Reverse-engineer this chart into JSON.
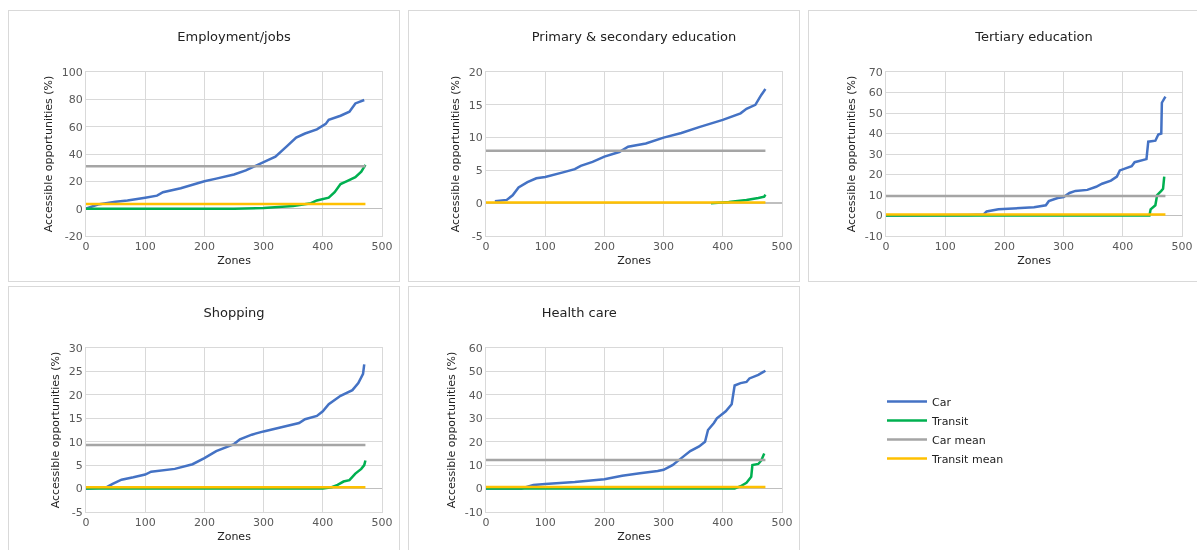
{
  "chart_data": [
    {
      "type": "line",
      "title": "Employment/jobs",
      "xlabel": "Zones",
      "ylabel": "Accessible opportunities (%)",
      "xlim": [
        0,
        500
      ],
      "xticks": [
        0,
        100,
        200,
        300,
        400,
        500
      ],
      "ylim": [
        -20,
        100
      ],
      "yticks": [
        -20,
        0,
        20,
        40,
        60,
        80,
        100
      ],
      "grid": true,
      "legend": false,
      "marker": "none",
      "line_style": "solid",
      "series": [
        {
          "color": "#4472c4",
          "x": [
            0,
            20,
            50,
            70,
            100,
            120,
            130,
            160,
            180,
            200,
            220,
            250,
            270,
            290,
            310,
            320,
            340,
            355,
            370,
            390,
            405,
            410,
            430,
            445,
            455,
            470
          ],
          "values": [
            0,
            3,
            5,
            6,
            8,
            9.5,
            12,
            15,
            17.5,
            20,
            22,
            25,
            28,
            32,
            36,
            38,
            46,
            52,
            55,
            58,
            62,
            65,
            68,
            71,
            77,
            79.5
          ]
        },
        {
          "color": "#00b050",
          "x": [
            0,
            250,
            300,
            350,
            380,
            390,
            410,
            420,
            430,
            440,
            455,
            465,
            472
          ],
          "values": [
            0,
            0,
            0.5,
            2,
            4,
            6,
            8,
            12,
            18,
            20,
            23,
            27,
            32
          ]
        },
        {
          "color": "#a5a5a5",
          "x": [
            0,
            472
          ],
          "values": [
            31,
            31
          ]
        },
        {
          "color": "#ffc000",
          "x": [
            0,
            472
          ],
          "values": [
            3.5,
            3.5
          ]
        }
      ]
    },
    {
      "type": "line",
      "title": "Primary & secondary education",
      "xlabel": "Zones",
      "ylabel": "Accessible opportunities (%)",
      "xlim": [
        0,
        500
      ],
      "xticks": [
        0,
        100,
        200,
        300,
        400,
        500
      ],
      "ylim": [
        -5,
        20
      ],
      "yticks": [
        -5,
        0,
        5,
        10,
        15,
        20
      ],
      "grid": true,
      "legend": false,
      "marker": "none",
      "line_style": "solid",
      "series": [
        {
          "color": "#4472c4",
          "x": [
            15,
            35,
            45,
            55,
            70,
            85,
            100,
            130,
            150,
            160,
            180,
            200,
            225,
            240,
            270,
            300,
            330,
            360,
            400,
            430,
            440,
            455,
            465,
            472
          ],
          "values": [
            0.3,
            0.5,
            1.2,
            2.4,
            3.2,
            3.8,
            4,
            4.7,
            5.2,
            5.7,
            6.3,
            7.1,
            7.8,
            8.6,
            9.1,
            10,
            10.7,
            11.6,
            12.7,
            13.7,
            14.4,
            15,
            16.5,
            17.4
          ]
        },
        {
          "color": "#00b050",
          "x": [
            380,
            410,
            440,
            460,
            470,
            472
          ],
          "values": [
            0,
            0.2,
            0.5,
            0.8,
            1,
            1.3
          ]
        },
        {
          "color": "#a5a5a5",
          "x": [
            0,
            472
          ],
          "values": [
            8,
            8
          ]
        },
        {
          "color": "#ffc000",
          "x": [
            0,
            472
          ],
          "values": [
            0.1,
            0.1
          ]
        }
      ]
    },
    {
      "type": "line",
      "title": "Tertiary education",
      "xlabel": "Zones",
      "ylabel": "Accessible opportunities (%)",
      "xlim": [
        0,
        500
      ],
      "xticks": [
        0,
        100,
        200,
        300,
        400,
        500
      ],
      "ylim": [
        -10,
        70
      ],
      "yticks": [
        -10,
        0,
        10,
        20,
        30,
        40,
        50,
        60,
        70
      ],
      "grid": true,
      "legend": false,
      "marker": "none",
      "line_style": "solid",
      "series": [
        {
          "color": "#4472c4",
          "x": [
            0,
            140,
            165,
            170,
            190,
            250,
            270,
            275,
            290,
            300,
            310,
            320,
            340,
            355,
            365,
            380,
            390,
            395,
            415,
            420,
            440,
            443,
            455,
            460,
            465,
            466,
            472
          ],
          "values": [
            0,
            0.3,
            0.5,
            2,
            3,
            4,
            5,
            7,
            8.5,
            9,
            11,
            12,
            12.5,
            14,
            15.5,
            17,
            19,
            22,
            24,
            26,
            27.5,
            36,
            36.5,
            39.5,
            40,
            55,
            58
          ]
        },
        {
          "color": "#00b050",
          "x": [
            0,
            445,
            447,
            455,
            458,
            465,
            468,
            470
          ],
          "values": [
            0,
            0,
            3,
            5,
            10,
            12,
            13,
            19
          ]
        },
        {
          "color": "#a5a5a5",
          "x": [
            0,
            472
          ],
          "values": [
            9.5,
            9.5
          ]
        },
        {
          "color": "#ffc000",
          "x": [
            0,
            472
          ],
          "values": [
            0.5,
            0.5
          ]
        }
      ]
    },
    {
      "type": "line",
      "title": "Shopping",
      "xlabel": "Zones",
      "ylabel": "Accessible opportunities (%)",
      "xlim": [
        0,
        500
      ],
      "xticks": [
        0,
        100,
        200,
        300,
        400,
        500
      ],
      "ylim": [
        -5,
        30
      ],
      "yticks": [
        -5,
        0,
        5,
        10,
        15,
        20,
        25,
        30
      ],
      "grid": true,
      "legend": false,
      "marker": "none",
      "line_style": "solid",
      "series": [
        {
          "color": "#4472c4",
          "x": [
            0,
            35,
            45,
            60,
            80,
            100,
            110,
            150,
            180,
            200,
            220,
            250,
            260,
            280,
            300,
            330,
            360,
            370,
            390,
            400,
            410,
            430,
            450,
            460,
            468,
            470
          ],
          "values": [
            0,
            0.3,
            1,
            1.9,
            2.4,
            3,
            3.6,
            4.2,
            5.2,
            6.5,
            8,
            9.5,
            10.5,
            11.5,
            12.2,
            13.1,
            14,
            14.8,
            15.5,
            16.5,
            18,
            19.8,
            21,
            22.5,
            24.5,
            26.5
          ]
        },
        {
          "color": "#00b050",
          "x": [
            0,
            400,
            415,
            425,
            435,
            445,
            455,
            465,
            470,
            472
          ],
          "values": [
            0,
            0,
            0.3,
            0.8,
            1.5,
            1.8,
            3.2,
            4.2,
            5,
            6
          ]
        },
        {
          "color": "#a5a5a5",
          "x": [
            0,
            472
          ],
          "values": [
            9.3,
            9.3
          ]
        },
        {
          "color": "#ffc000",
          "x": [
            0,
            472
          ],
          "values": [
            0.3,
            0.3
          ]
        }
      ]
    },
    {
      "type": "line",
      "title": "Health care",
      "xlabel": "Zones",
      "ylabel": "Accessible opportunities (%)",
      "xlim": [
        0,
        500
      ],
      "xticks": [
        0,
        100,
        200,
        300,
        400,
        500
      ],
      "ylim": [
        -10,
        60
      ],
      "yticks": [
        -10,
        0,
        10,
        20,
        30,
        40,
        50,
        60
      ],
      "grid": true,
      "legend": "right",
      "marker": "none",
      "line_style": "solid",
      "series": [
        {
          "name": "Car",
          "color": "#4472c4",
          "x": [
            0,
            60,
            80,
            100,
            150,
            200,
            230,
            260,
            290,
            300,
            315,
            330,
            345,
            360,
            370,
            375,
            385,
            390,
            405,
            415,
            420,
            430,
            440,
            445,
            460,
            472
          ],
          "values": [
            0,
            0,
            1.5,
            2,
            2.8,
            4,
            5.5,
            6.5,
            7.5,
            8,
            10,
            13,
            16,
            18,
            20,
            25,
            28,
            30,
            33,
            36,
            44,
            45,
            45.5,
            47,
            48.5,
            50.3
          ]
        },
        {
          "name": "Transit",
          "color": "#00b050",
          "x": [
            0,
            420,
            430,
            440,
            448,
            450,
            460,
            465,
            470
          ],
          "values": [
            0,
            0,
            1,
            2.5,
            5,
            10,
            10.5,
            12,
            15
          ]
        },
        {
          "name": "Car mean",
          "color": "#a5a5a5",
          "x": [
            0,
            472
          ],
          "values": [
            12.2,
            12.2
          ]
        },
        {
          "name": "Transit mean",
          "color": "#ffc000",
          "x": [
            0,
            472
          ],
          "values": [
            0.7,
            0.7
          ]
        }
      ]
    }
  ]
}
